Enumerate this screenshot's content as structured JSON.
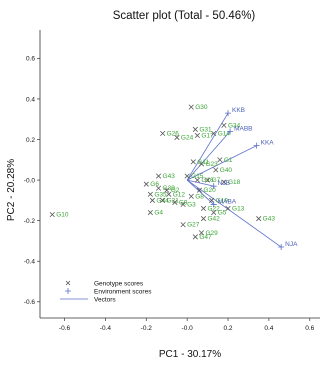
{
  "chart_data": {
    "type": "scatter",
    "title": "Scatter plot (Total - 50.46%)",
    "xlabel": "PC1 - 30.17%",
    "ylabel": "PC2 - 20.28%",
    "xlim": [
      -0.72,
      0.65
    ],
    "ylim": [
      -0.68,
      0.74
    ],
    "x_ticks": [
      -0.6,
      -0.4,
      -0.2,
      0.0,
      0.2,
      0.4,
      0.6
    ],
    "x_tick_labels": [
      "-0.6",
      "-0.4",
      "-0.2",
      "-0.0",
      "0.2",
      "0.4",
      "0.6"
    ],
    "y_ticks": [
      0.6,
      0.4,
      0.2,
      0.0,
      -0.2,
      -0.4,
      -0.6
    ],
    "y_tick_labels": [
      "0.6",
      "0.4",
      "0.2",
      "-0.0",
      "-0.2",
      "-0.4",
      "-0.6"
    ],
    "legend": {
      "placement": "bottom-left",
      "entries": [
        "Genotype scores",
        "Environment scores",
        "Vectors"
      ]
    },
    "genotypes": [
      {
        "label": "G30",
        "x": 0.02,
        "y": 0.36
      },
      {
        "label": "G31",
        "x": 0.04,
        "y": 0.25
      },
      {
        "label": "G34",
        "x": 0.18,
        "y": 0.27
      },
      {
        "label": "G26",
        "x": -0.12,
        "y": 0.23
      },
      {
        "label": "G24",
        "x": -0.05,
        "y": 0.21
      },
      {
        "label": "G17",
        "x": 0.05,
        "y": 0.22
      },
      {
        "label": "G14",
        "x": 0.13,
        "y": 0.23
      },
      {
        "label": "G1",
        "x": 0.16,
        "y": 0.1
      },
      {
        "label": "G40",
        "x": 0.14,
        "y": 0.05
      },
      {
        "label": "G23",
        "x": 0.07,
        "y": 0.08
      },
      {
        "label": "G11",
        "x": 0.03,
        "y": 0.09
      },
      {
        "label": "G43",
        "x": -0.14,
        "y": 0.02
      },
      {
        "label": "G15",
        "x": 0.0,
        "y": 0.02
      },
      {
        "label": "G16",
        "x": 0.05,
        "y": 0.0
      },
      {
        "label": "G6",
        "x": -0.2,
        "y": -0.02
      },
      {
        "label": "G39",
        "x": -0.14,
        "y": -0.04
      },
      {
        "label": "G18",
        "x": 0.18,
        "y": -0.01
      },
      {
        "label": "G20",
        "x": 0.06,
        "y": -0.05
      },
      {
        "label": "G35",
        "x": -0.18,
        "y": -0.07
      },
      {
        "label": "G12",
        "x": -0.09,
        "y": -0.07
      },
      {
        "label": "G19",
        "x": 0.12,
        "y": -0.1
      },
      {
        "label": "G44",
        "x": -0.17,
        "y": -0.1
      },
      {
        "label": "G21",
        "x": -0.12,
        "y": -0.1
      },
      {
        "label": "G9",
        "x": -0.06,
        "y": -0.11
      },
      {
        "label": "G3",
        "x": -0.02,
        "y": -0.12
      },
      {
        "label": "G4",
        "x": -0.18,
        "y": -0.16
      },
      {
        "label": "G13",
        "x": 0.2,
        "y": -0.14
      },
      {
        "label": "G5",
        "x": 0.13,
        "y": -0.16
      },
      {
        "label": "G10",
        "x": -0.66,
        "y": -0.17
      },
      {
        "label": "G42",
        "x": 0.08,
        "y": -0.19
      },
      {
        "label": "G27",
        "x": -0.02,
        "y": -0.22
      },
      {
        "label": "G43",
        "x": 0.35,
        "y": -0.19
      },
      {
        "label": "G29",
        "x": 0.07,
        "y": -0.26
      },
      {
        "label": "G47",
        "x": 0.04,
        "y": -0.28
      },
      {
        "label": "G2",
        "x": -0.1,
        "y": -0.05
      },
      {
        "label": "G7",
        "x": 0.1,
        "y": 0.0
      },
      {
        "label": "G8",
        "x": 0.02,
        "y": -0.08
      },
      {
        "label": "G22",
        "x": 0.08,
        "y": -0.14
      }
    ],
    "environments": [
      {
        "label": "KKB",
        "x": 0.2,
        "y": 0.33
      },
      {
        "label": "KKA",
        "x": 0.34,
        "y": 0.17
      },
      {
        "label": "MABB",
        "x": 0.21,
        "y": 0.24
      },
      {
        "label": "NJB",
        "x": 0.13,
        "y": -0.03
      },
      {
        "label": "MABA",
        "x": 0.13,
        "y": -0.12
      },
      {
        "label": "NJA",
        "x": 0.46,
        "y": -0.33
      }
    ],
    "origin": [
      0.0,
      0.0
    ]
  }
}
